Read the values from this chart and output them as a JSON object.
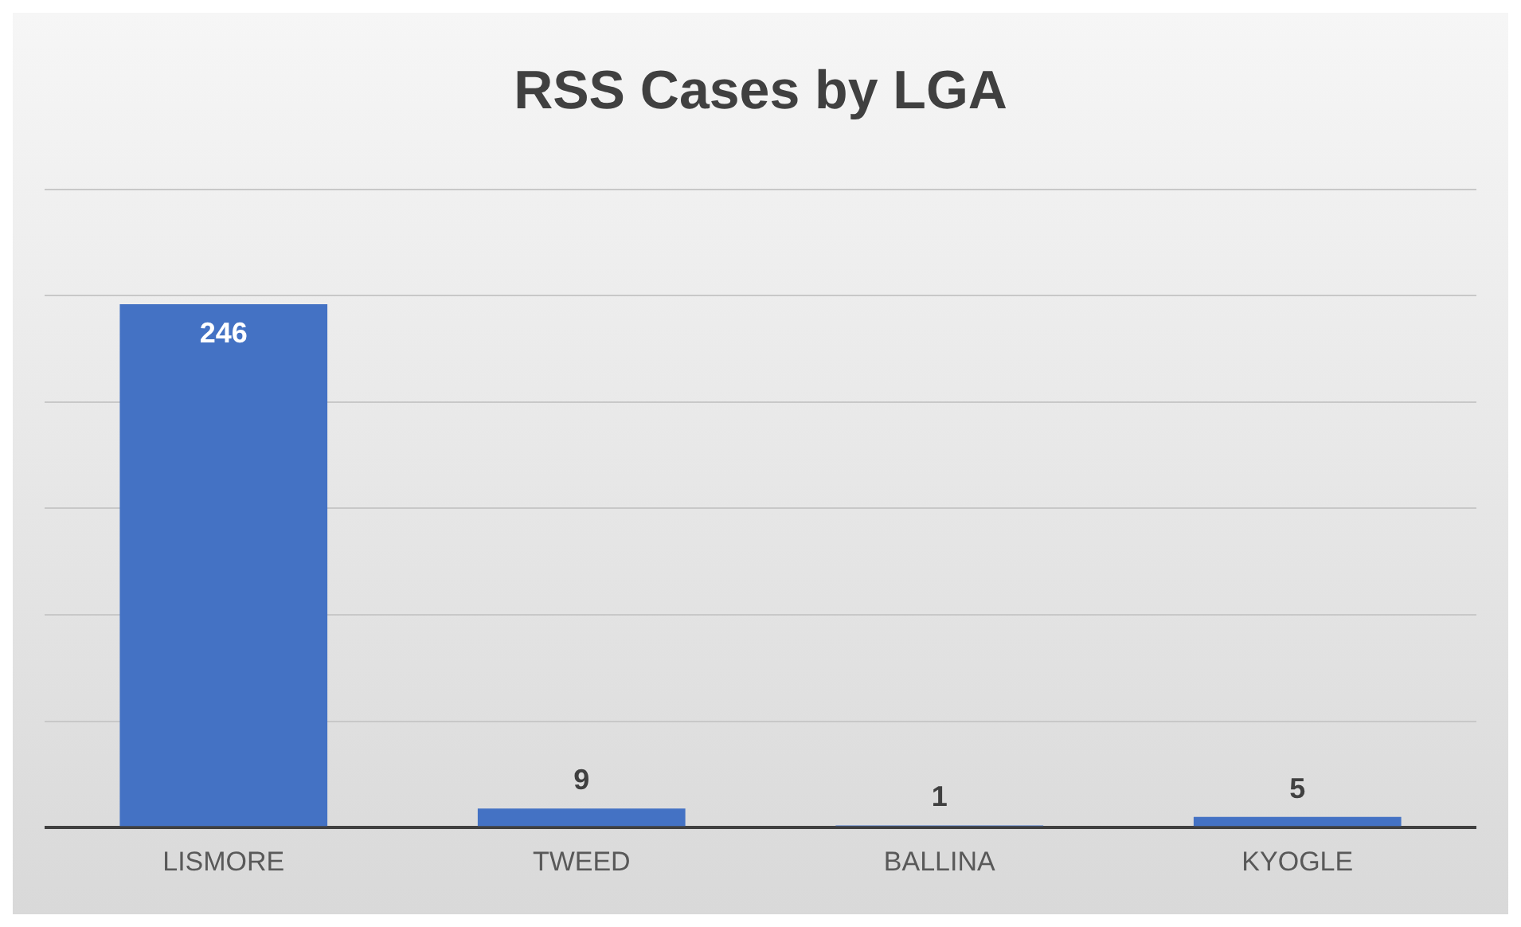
{
  "chart_data": {
    "type": "bar",
    "title": "RSS Cases by LGA",
    "categories": [
      "LISMORE",
      "TWEED",
      "BALLINA",
      "KYOGLE"
    ],
    "values": [
      246,
      9,
      1,
      5
    ],
    "color": "#4472c4",
    "ylim": [
      0,
      300
    ],
    "yticks": [
      0,
      {
        "value": 50,
        "label": null
      },
      {
        "value": 100,
        "label": null
      },
      {
        "value": 150,
        "label": null
      },
      {
        "value": 200,
        "label": null
      },
      {
        "value": 250,
        "label": null
      },
      {
        "value": 300,
        "label": null
      }
    ],
    "tick_labels": "x",
    "grid": "y",
    "data_labels": true,
    "legend": false
  }
}
